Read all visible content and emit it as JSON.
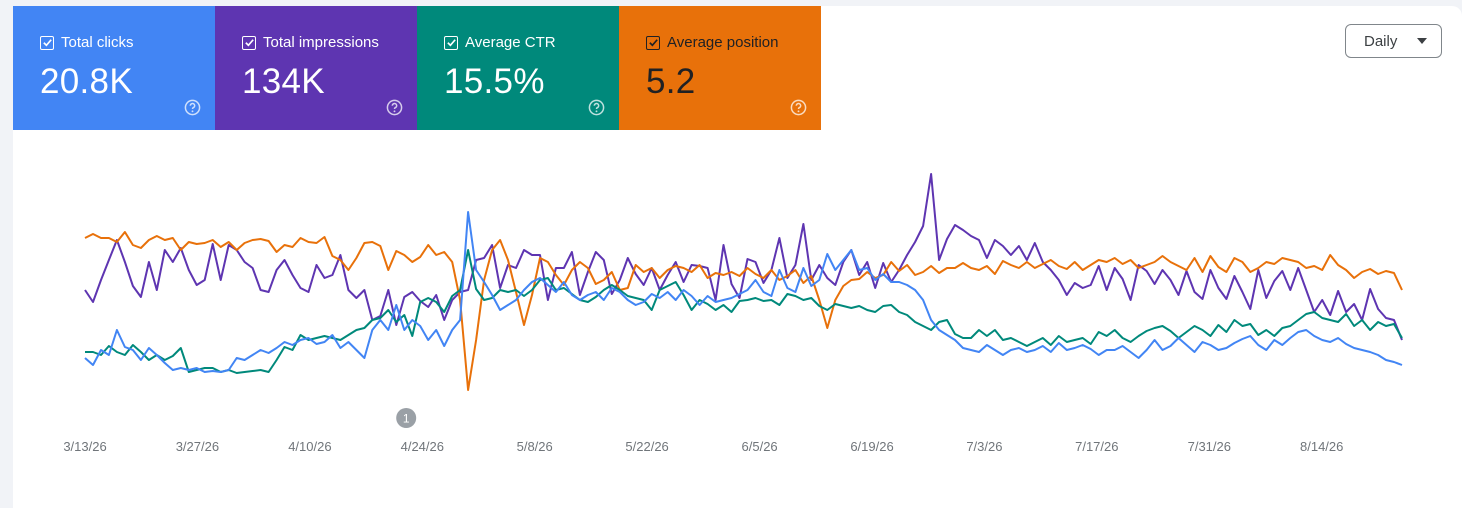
{
  "metrics": [
    {
      "label": "Total clicks",
      "value": "20.8K",
      "color": "#4285f4"
    },
    {
      "label": "Total impressions",
      "value": "134K",
      "color": "#5e35b1"
    },
    {
      "label": "Average CTR",
      "value": "15.5%",
      "color": "#00897b"
    },
    {
      "label": "Average position",
      "value": "5.2",
      "color": "#e8710a"
    }
  ],
  "granularity": {
    "selected": "Daily"
  },
  "annotation": {
    "label": "1",
    "date": "4/22/26"
  },
  "chart_data": {
    "type": "line",
    "x_labels": [
      "3/13/26",
      "3/27/26",
      "4/10/26",
      "4/24/26",
      "5/8/26",
      "5/22/26",
      "6/5/26",
      "6/19/26",
      "7/3/26",
      "7/17/26",
      "7/31/26",
      "8/14/26"
    ],
    "x_start": "3/13/26",
    "x_end": "8/24/26",
    "axes_visible": false,
    "series": [
      {
        "name": "Total impressions",
        "color": "#5e35b1",
        "values": [
          290,
          302,
          280,
          260,
          240,
          262,
          286,
          297,
          262,
          290,
          250,
          262,
          248,
          270,
          285,
          280,
          244,
          280,
          245,
          250,
          262,
          268,
          290,
          292,
          270,
          260,
          275,
          288,
          292,
          265,
          278,
          275,
          255,
          290,
          298,
          290,
          320,
          316,
          290,
          325,
          297,
          292,
          301,
          307,
          295,
          320,
          300,
          292,
          290,
          260,
          258,
          245,
          288,
          265,
          268,
          250,
          255,
          255,
          300,
          268,
          268,
          252,
          295,
          272,
          252,
          260,
          294,
          280,
          258,
          274,
          285,
          268,
          290,
          275,
          262,
          282,
          265,
          266,
          268,
          300,
          245,
          284,
          298,
          259,
          262,
          283,
          270,
          238,
          278,
          265,
          224,
          280,
          265,
          278,
          285,
          262,
          250,
          275,
          262,
          288,
          263,
          282,
          270,
          255,
          242,
          226,
          174,
          260,
          239,
          225,
          230,
          236,
          240,
          258,
          240,
          246,
          255,
          246,
          260,
          243,
          262,
          270,
          280,
          295,
          283,
          288,
          285,
          266,
          290,
          268,
          279,
          300,
          265,
          271,
          284,
          270,
          280,
          295,
          271,
          292,
          299,
          270,
          288,
          299,
          276,
          292,
          309,
          270,
          298,
          281,
          271,
          290,
          268,
          290,
          312,
          300,
          315,
          291,
          312,
          304,
          320,
          289,
          309,
          318,
          320,
          340
        ]
      },
      {
        "name": "Average position",
        "color": "#e8710a",
        "values": [
          238,
          234,
          238,
          238,
          242,
          232,
          245,
          248,
          240,
          236,
          240,
          238,
          250,
          242,
          244,
          243,
          240,
          247,
          242,
          250,
          243,
          240,
          239,
          241,
          252,
          245,
          247,
          238,
          242,
          243,
          237,
          256,
          260,
          270,
          258,
          243,
          242,
          246,
          270,
          251,
          255,
          262,
          257,
          245,
          255,
          252,
          262,
          300,
          390,
          340,
          280,
          250,
          240,
          260,
          292,
          325,
          295,
          258,
          262,
          275,
          285,
          270,
          262,
          268,
          284,
          280,
          272,
          290,
          288,
          265,
          272,
          268,
          278,
          270,
          266,
          268,
          272,
          265,
          278,
          273,
          275,
          272,
          276,
          268,
          274,
          278,
          270,
          280,
          276,
          270,
          283,
          276,
          300,
          328,
          300,
          286,
          280,
          279,
          272,
          278,
          275,
          262,
          271,
          265,
          275,
          272,
          266,
          273,
          268,
          268,
          263,
          268,
          270,
          266,
          274,
          261,
          265,
          268,
          262,
          268,
          264,
          260,
          266,
          269,
          262,
          270,
          265,
          260,
          262,
          258,
          264,
          260,
          268,
          265,
          262,
          256,
          262,
          266,
          270,
          258,
          272,
          256,
          267,
          272,
          258,
          262,
          272,
          268,
          262,
          264,
          258,
          260,
          262,
          268,
          266,
          270,
          255,
          265,
          270,
          278,
          272,
          269,
          274,
          271,
          273,
          290
        ]
      },
      {
        "name": "Average CTR",
        "color": "#00897b",
        "values": [
          352,
          352,
          355,
          346,
          352,
          355,
          345,
          352,
          360,
          355,
          360,
          356,
          348,
          372,
          370,
          368,
          368,
          372,
          370,
          373,
          372,
          371,
          370,
          372,
          360,
          347,
          350,
          335,
          340,
          338,
          336,
          338,
          340,
          335,
          330,
          328,
          320,
          318,
          310,
          322,
          315,
          336,
          302,
          298,
          302,
          312,
          296,
          290,
          250,
          289,
          300,
          298,
          290,
          292,
          290,
          296,
          290,
          280,
          278,
          290,
          288,
          294,
          300,
          302,
          297,
          290,
          285,
          290,
          296,
          298,
          300,
          310,
          290,
          286,
          282,
          295,
          310,
          300,
          304,
          310,
          305,
          312,
          301,
          300,
          298,
          301,
          300,
          305,
          294,
          296,
          300,
          298,
          306,
          310,
          304,
          306,
          308,
          306,
          310,
          312,
          306,
          305,
          312,
          315,
          322,
          326,
          330,
          322,
          320,
          334,
          338,
          338,
          330,
          336,
          330,
          340,
          338,
          342,
          346,
          342,
          338,
          345,
          336,
          342,
          340,
          338,
          344,
          332,
          336,
          330,
          338,
          342,
          336,
          331,
          328,
          326,
          331,
          338,
          332,
          326,
          330,
          336,
          325,
          332,
          320,
          326,
          324,
          335,
          330,
          336,
          328,
          326,
          320,
          314,
          312,
          318,
          320,
          322,
          314,
          326,
          320,
          330,
          322,
          326,
          324,
          338
        ]
      },
      {
        "name": "Total clicks",
        "color": "#4285f4",
        "values": [
          358,
          365,
          350,
          355,
          330,
          347,
          350,
          360,
          348,
          355,
          363,
          370,
          368,
          370,
          368,
          372,
          371,
          372,
          370,
          358,
          360,
          355,
          350,
          353,
          348,
          342,
          345,
          340,
          338,
          344,
          342,
          335,
          348,
          342,
          350,
          358,
          330,
          320,
          330,
          305,
          330,
          320,
          326,
          340,
          330,
          346,
          330,
          320,
          212,
          270,
          282,
          295,
          310,
          305,
          300,
          290,
          282,
          278,
          285,
          292,
          282,
          295,
          300,
          295,
          292,
          300,
          288,
          292,
          300,
          305,
          302,
          294,
          298,
          292,
          300,
          290,
          296,
          305,
          296,
          302,
          300,
          298,
          294,
          290,
          280,
          292,
          296,
          270,
          288,
          292,
          268,
          286,
          280,
          254,
          270,
          260,
          250,
          270,
          268,
          280,
          274,
          282,
          282,
          285,
          290,
          300,
          320,
          330,
          335,
          340,
          348,
          350,
          352,
          345,
          350,
          355,
          350,
          348,
          352,
          350,
          346,
          352,
          343,
          350,
          348,
          345,
          349,
          355,
          350,
          350,
          346,
          352,
          358,
          350,
          340,
          350,
          346,
          338,
          345,
          352,
          342,
          345,
          350,
          348,
          343,
          339,
          336,
          345,
          350,
          340,
          345,
          338,
          332,
          330,
          336,
          340,
          342,
          338,
          344,
          348,
          350,
          352,
          355,
          360,
          362,
          365
        ]
      }
    ]
  }
}
